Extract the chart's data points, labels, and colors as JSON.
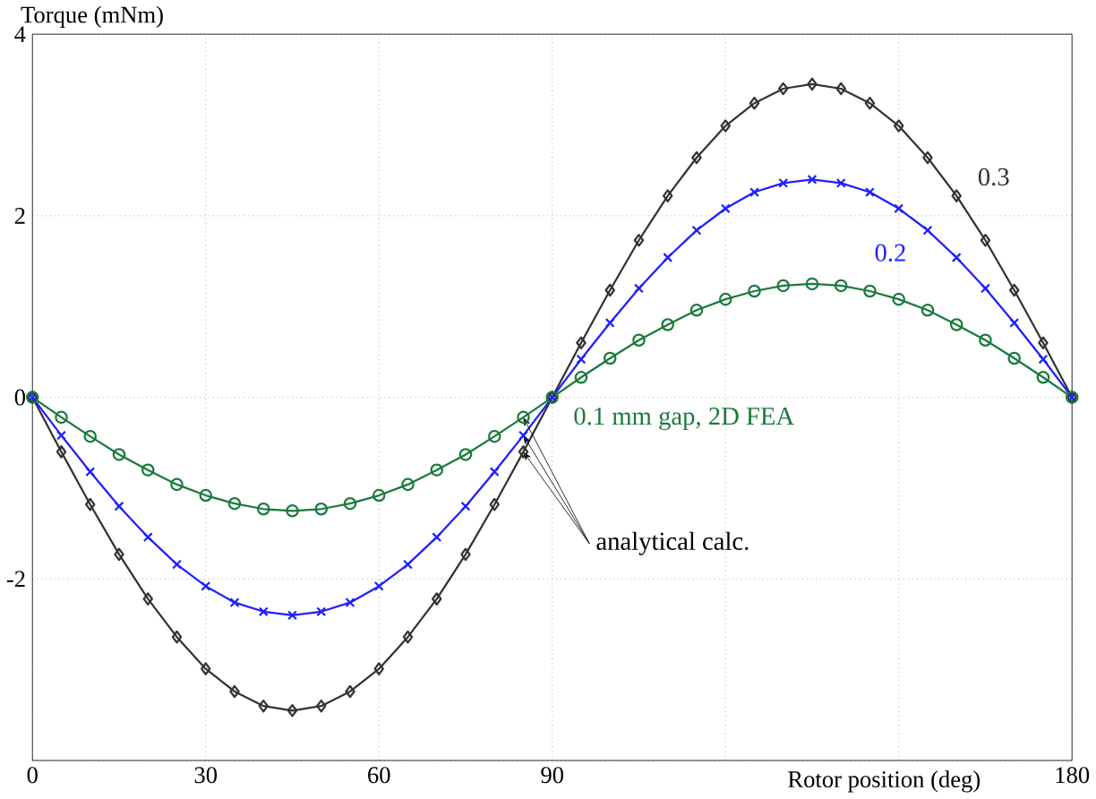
{
  "chart_data": {
    "type": "line",
    "xlabel": "Rotor position (deg)",
    "ylabel": "Torque (mNm)",
    "x": [
      0,
      5,
      10,
      15,
      20,
      25,
      30,
      35,
      40,
      45,
      50,
      55,
      60,
      65,
      70,
      75,
      80,
      85,
      90,
      95,
      100,
      105,
      110,
      115,
      120,
      125,
      130,
      135,
      140,
      145,
      150,
      155,
      160,
      165,
      170,
      175,
      180
    ],
    "series": [
      {
        "name": "0.3",
        "color": "#333333",
        "marker": "diamond",
        "values": [
          0,
          -0.6,
          -1.18,
          -1.73,
          -2.22,
          -2.64,
          -2.99,
          -3.24,
          -3.4,
          -3.45,
          -3.4,
          -3.24,
          -2.99,
          -2.64,
          -2.22,
          -1.73,
          -1.18,
          -0.6,
          0,
          0.6,
          1.18,
          1.73,
          2.22,
          2.64,
          2.99,
          3.24,
          3.4,
          3.45,
          3.4,
          3.24,
          2.99,
          2.64,
          2.22,
          1.73,
          1.18,
          0.6,
          0
        ]
      },
      {
        "name": "0.2",
        "color": "#1f1fff",
        "marker": "cross",
        "values": [
          0,
          -0.42,
          -0.82,
          -1.2,
          -1.54,
          -1.84,
          -2.08,
          -2.26,
          -2.36,
          -2.4,
          -2.36,
          -2.26,
          -2.08,
          -1.84,
          -1.54,
          -1.2,
          -0.82,
          -0.42,
          0,
          0.42,
          0.82,
          1.2,
          1.54,
          1.84,
          2.08,
          2.26,
          2.36,
          2.4,
          2.36,
          2.26,
          2.08,
          1.84,
          1.54,
          1.2,
          0.82,
          0.42,
          0
        ]
      },
      {
        "name": "0.1 mm gap, 2D FEA",
        "color": "#1a7a3c",
        "marker": "circle",
        "values": [
          0,
          -0.22,
          -0.43,
          -0.63,
          -0.8,
          -0.96,
          -1.08,
          -1.17,
          -1.23,
          -1.25,
          -1.23,
          -1.17,
          -1.08,
          -0.96,
          -0.8,
          -0.63,
          -0.43,
          -0.22,
          0,
          0.22,
          0.43,
          0.63,
          0.8,
          0.96,
          1.08,
          1.17,
          1.23,
          1.25,
          1.23,
          1.17,
          1.08,
          0.96,
          0.8,
          0.63,
          0.43,
          0.22,
          0
        ]
      }
    ],
    "annotations": [
      {
        "text": "analytical calc.",
        "x": 85,
        "y": -0.6
      }
    ],
    "xlim": [
      0,
      180
    ],
    "ylim": [
      -4,
      4
    ],
    "xticks": [
      0,
      30,
      60,
      90,
      {
        "value": 120,
        "label": null
      },
      {
        "value": 150,
        "label": null
      },
      180
    ],
    "yticks": [
      {
        "value": -4,
        "label": null
      },
      -2,
      0,
      2,
      4
    ],
    "grid": true,
    "line_style": "solid"
  }
}
